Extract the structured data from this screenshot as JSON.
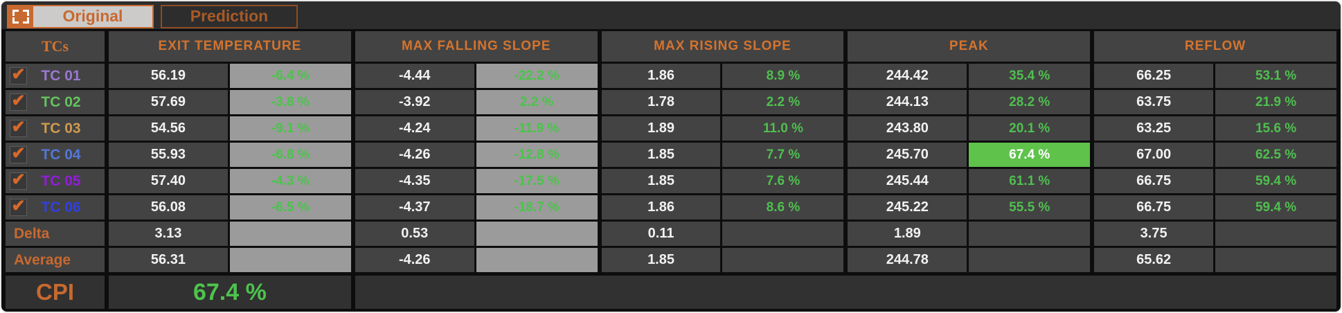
{
  "tabs": {
    "original": "Original",
    "prediction": "Prediction"
  },
  "header": {
    "tcs": "TCs",
    "exit_temperature": "EXIT TEMPERATURE",
    "max_falling_slope": "MAX FALLING SLOPE",
    "max_rising_slope": "MAX RISING SLOPE",
    "peak": "PEAK",
    "reflow": "REFLOW"
  },
  "check_glyph": "✔",
  "rows": [
    {
      "label": "TC 01",
      "color": "#9a78d2",
      "checked": true,
      "exit_temperature": {
        "value": "56.19",
        "pct": "-6.4 %"
      },
      "max_falling_slope": {
        "value": "-4.44",
        "pct": "-22.2 %"
      },
      "max_rising_slope": {
        "value": "1.86",
        "pct": "8.9 %"
      },
      "peak": {
        "value": "244.42",
        "pct": "35.4 %"
      },
      "reflow": {
        "value": "66.25",
        "pct": "53.1 %"
      }
    },
    {
      "label": "TC 02",
      "color": "#63c45e",
      "checked": true,
      "exit_temperature": {
        "value": "57.69",
        "pct": "-3.8 %"
      },
      "max_falling_slope": {
        "value": "-3.92",
        "pct": "2.2 %"
      },
      "max_rising_slope": {
        "value": "1.78",
        "pct": "2.2 %"
      },
      "peak": {
        "value": "244.13",
        "pct": "28.2 %"
      },
      "reflow": {
        "value": "63.75",
        "pct": "21.9 %"
      }
    },
    {
      "label": "TC 03",
      "color": "#cf9a4e",
      "checked": true,
      "exit_temperature": {
        "value": "54.56",
        "pct": "-9.1 %"
      },
      "max_falling_slope": {
        "value": "-4.24",
        "pct": "-11.9 %"
      },
      "max_rising_slope": {
        "value": "1.89",
        "pct": "11.0 %"
      },
      "peak": {
        "value": "243.80",
        "pct": "20.1 %"
      },
      "reflow": {
        "value": "63.25",
        "pct": "15.6 %"
      }
    },
    {
      "label": "TC 04",
      "color": "#5377d4",
      "checked": true,
      "exit_temperature": {
        "value": "55.93",
        "pct": "-6.8 %"
      },
      "max_falling_slope": {
        "value": "-4.26",
        "pct": "-12.8 %"
      },
      "max_rising_slope": {
        "value": "1.85",
        "pct": "7.7 %"
      },
      "peak": {
        "value": "245.70",
        "pct": "67.4 %"
      },
      "reflow": {
        "value": "67.00",
        "pct": "62.5 %"
      }
    },
    {
      "label": "TC 05",
      "color": "#921ddb",
      "checked": true,
      "exit_temperature": {
        "value": "57.40",
        "pct": "-4.3 %"
      },
      "max_falling_slope": {
        "value": "-4.35",
        "pct": "-17.5 %"
      },
      "max_rising_slope": {
        "value": "1.85",
        "pct": "7.6 %"
      },
      "peak": {
        "value": "245.44",
        "pct": "61.1 %"
      },
      "reflow": {
        "value": "66.75",
        "pct": "59.4 %"
      }
    },
    {
      "label": "TC 06",
      "color": "#3140e0",
      "checked": true,
      "exit_temperature": {
        "value": "56.08",
        "pct": "-6.5 %"
      },
      "max_falling_slope": {
        "value": "-4.37",
        "pct": "-18.7 %"
      },
      "max_rising_slope": {
        "value": "1.86",
        "pct": "8.6 %"
      },
      "peak": {
        "value": "245.22",
        "pct": "55.5 %"
      },
      "reflow": {
        "value": "66.75",
        "pct": "59.4 %"
      }
    }
  ],
  "delta": {
    "label": "Delta",
    "exit_temperature": "3.13",
    "max_falling_slope": "0.53",
    "max_rising_slope": "0.11",
    "peak": "1.89",
    "reflow": "3.75"
  },
  "average": {
    "label": "Average",
    "exit_temperature": "56.31",
    "max_falling_slope": "-4.26",
    "max_rising_slope": "1.85",
    "peak": "244.78",
    "reflow": "65.62"
  },
  "cpi": {
    "label": "CPI",
    "value": "67.4 %"
  },
  "colors": {
    "accent_orange": "#c8692f",
    "green_text": "#4fbf4f",
    "light_cell_bg": "#9b9b9b",
    "highlight_green": "#5fc24b"
  }
}
